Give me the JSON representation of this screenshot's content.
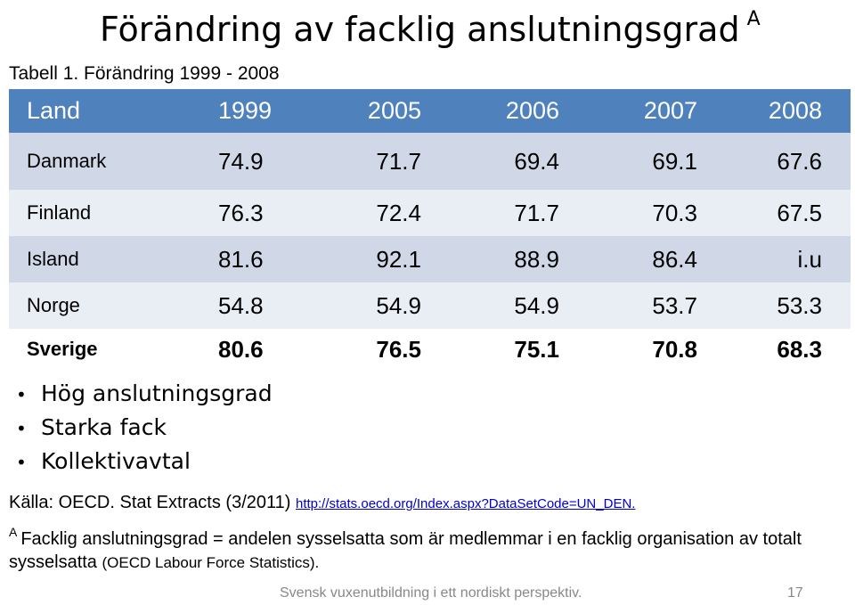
{
  "title": {
    "text": "Förändring av facklig anslutningsgrad",
    "marker": "A"
  },
  "table_caption": "Tabell 1. Förändring  1999 - 2008",
  "table": {
    "headers": [
      "Land",
      "1999",
      "2005",
      "2006",
      "2007",
      "2008"
    ],
    "rows": [
      {
        "country": "Danmark",
        "values": [
          "74.9",
          "71.7",
          "69.4",
          "69.1",
          "67.6"
        ]
      },
      {
        "country": "Finland",
        "values": [
          "76.3",
          "72.4",
          "71.7",
          "70.3",
          "67.5"
        ]
      },
      {
        "country": "Island",
        "values": [
          "81.6",
          "92.1",
          "88.9",
          "86.4",
          "i.u"
        ]
      },
      {
        "country": "Norge",
        "values": [
          "54.8",
          "54.9",
          "54.9",
          "53.7",
          "53.3"
        ]
      },
      {
        "country": "Sverige",
        "values": [
          "80.6",
          "76.5",
          "75.1",
          "70.8",
          "68.3"
        ]
      }
    ]
  },
  "bullets": [
    "Hög anslutningsgrad",
    "Starka fack",
    "Kollektivavtal"
  ],
  "source": {
    "text": "Källa: OECD. Stat Extracts (3/2011)",
    "url": "http://stats.oecd.org/Index.aspx?DataSetCode=UN_DEN."
  },
  "footnote": {
    "marker": "A",
    "text": "Facklig anslutningsgrad = andelen sysselsatta som är medlemmar i en facklig organisation av totalt sysselsatta",
    "small": "(OECD Labour Force Statistics)."
  },
  "footer": {
    "text": "Svensk vuxenutbildning i ett nordiskt perspektiv.",
    "page": "17"
  }
}
